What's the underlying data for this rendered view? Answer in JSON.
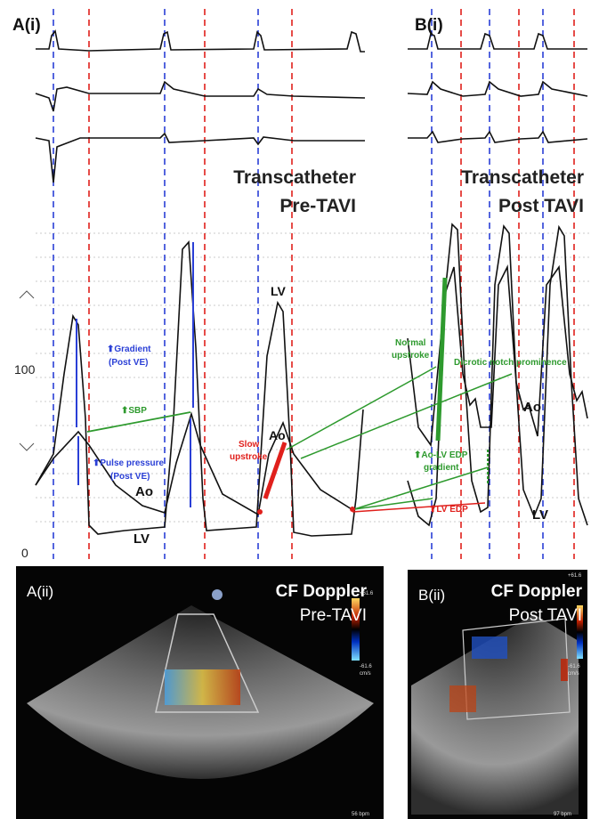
{
  "panel_a_i": {
    "label": "A(i)",
    "title_line1": "Transcatheter",
    "title_line2": "Pre-TAVI"
  },
  "panel_b_i": {
    "label": "B(i)",
    "title_line1": "Transcatheter",
    "title_line2": "Post TAVI"
  },
  "axis": {
    "ticks": [
      "100",
      "0"
    ]
  },
  "annotations_a": {
    "lv_peak": "LV",
    "ao_mid": "Ao",
    "gradient": "Gradient",
    "gradient_note": "(Post VE)",
    "sbp": "SBP",
    "pulse_pressure": "Pulse pressure",
    "pulse_pressure_note": "(Post VE)",
    "ao": "Ao",
    "lv": "LV",
    "slow_upstroke_1": "Slow",
    "slow_upstroke_2": "upstroke"
  },
  "annotations_b": {
    "normal_upstroke_1": "Normal",
    "normal_upstroke_2": "upstroke",
    "dicrotic": "Dicrotic notch prominence",
    "ao": "Ao",
    "gradient_1": "Ao-LV EDP",
    "gradient_2": "gradient",
    "lv_edp": "LV EDP",
    "lv": "LV"
  },
  "panel_a_ii": {
    "label": "A(ii)",
    "title_line1": "CF Doppler",
    "title_line2": "Pre-TAVI",
    "scale_top": "+61.6",
    "scale_bottom": "-61.6",
    "scale_unit": "cm/s",
    "rate": "56 bpm"
  },
  "panel_b_ii": {
    "label": "B(ii)",
    "title_line1": "CF Doppler",
    "title_line2": "Post TAVI",
    "scale_top": "+61.6",
    "scale_bottom": "-61.6",
    "scale_unit": "cm/s",
    "rate": "97 bpm"
  }
}
